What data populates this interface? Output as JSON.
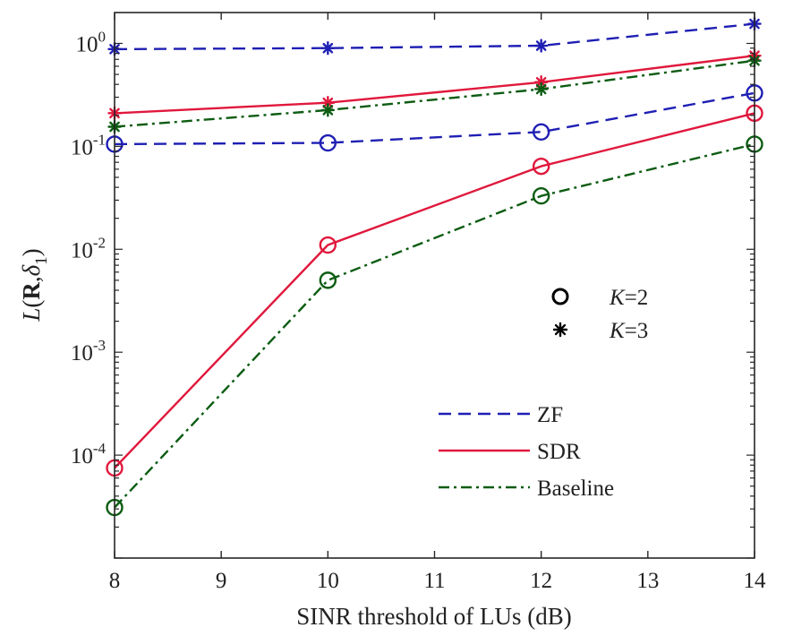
{
  "chart_data": {
    "type": "line",
    "xlabel": "SINR threshold of LUs (dB)",
    "ylabel": "L(R,δ1)",
    "ylabel_parts": {
      "prefix": "L",
      "open": "(",
      "bold": "R",
      "comma": ",",
      "delta": "δ",
      "sub": "1",
      "close": ")"
    },
    "xlim": [
      8,
      14
    ],
    "ylim_log10": [
      -5,
      0.3
    ],
    "yscale": "log",
    "x_ticks": [
      "8",
      "9",
      "10",
      "11",
      "12",
      "13",
      "14"
    ],
    "x_tick_values": [
      8,
      9,
      10,
      11,
      12,
      13,
      14
    ],
    "y_ticks": [
      {
        "exp": -4,
        "base": "10",
        "sup": "-4"
      },
      {
        "exp": -3,
        "base": "10",
        "sup": "-3"
      },
      {
        "exp": -2,
        "base": "10",
        "sup": "-2"
      },
      {
        "exp": -1,
        "base": "10",
        "sup": "-1"
      },
      {
        "exp": 0,
        "base": "10",
        "sup": "0"
      }
    ],
    "x": [
      8,
      10,
      12,
      14
    ],
    "series": [
      {
        "name": "ZF K=3",
        "method": "ZF",
        "K": 3,
        "color": "#1f1fb4",
        "dash": "dash",
        "marker": "star",
        "values": [
          0.88,
          0.9,
          0.95,
          1.55
        ]
      },
      {
        "name": "ZF K=2",
        "method": "ZF",
        "K": 2,
        "color": "#1f1fb4",
        "dash": "dash",
        "marker": "circle",
        "values": [
          0.105,
          0.108,
          0.138,
          0.33
        ]
      },
      {
        "name": "SDR K=3",
        "method": "SDR",
        "K": 3,
        "color": "#e0183c",
        "dash": "solid",
        "marker": "star",
        "values": [
          0.21,
          0.265,
          0.42,
          0.76
        ]
      },
      {
        "name": "SDR K=2",
        "method": "SDR",
        "K": 2,
        "color": "#e0183c",
        "dash": "solid",
        "marker": "circle",
        "values": [
          7.5e-05,
          0.011,
          0.064,
          0.21
        ]
      },
      {
        "name": "Baseline K=3",
        "method": "Baseline",
        "K": 3,
        "color": "#0c5c12",
        "dash": "dashdot",
        "marker": "star",
        "values": [
          0.155,
          0.225,
          0.36,
          0.68
        ]
      },
      {
        "name": "Baseline K=2",
        "method": "Baseline",
        "K": 2,
        "color": "#0c5c12",
        "dash": "dashdot",
        "marker": "circle",
        "values": [
          3.1e-05,
          0.005,
          0.033,
          0.105
        ]
      }
    ],
    "legend_markers": [
      {
        "marker": "circle",
        "label": "K=2",
        "italic": "K",
        "rest": "=2"
      },
      {
        "marker": "star",
        "label": "K=3",
        "italic": "K",
        "rest": "=3"
      }
    ],
    "legend_lines": [
      {
        "label": "ZF",
        "color": "#1f1fb4",
        "dash": "dash"
      },
      {
        "label": "SDR",
        "color": "#e0183c",
        "dash": "solid"
      },
      {
        "label": "Baseline",
        "color": "#0c5c12",
        "dash": "dashdot"
      }
    ],
    "grid": false
  }
}
